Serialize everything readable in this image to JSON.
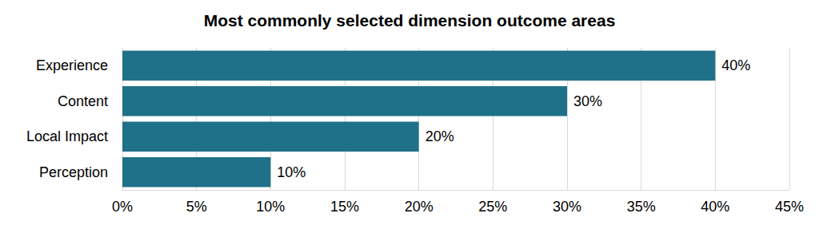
{
  "chart_data": {
    "type": "bar",
    "orientation": "horizontal",
    "title": "Most commonly selected dimension outcome areas",
    "categories": [
      "Experience",
      "Content",
      "Local Impact",
      "Perception"
    ],
    "values": [
      40,
      30,
      20,
      10
    ],
    "value_labels": [
      "40%",
      "30%",
      "20%",
      "10%"
    ],
    "color": "#1f7189",
    "xlim": [
      0,
      45
    ],
    "xticks": [
      {
        "value": 0,
        "label": "0%"
      },
      {
        "value": 5,
        "label": "5%"
      },
      {
        "value": 10,
        "label": "10%"
      },
      {
        "value": 15,
        "label": "15%"
      },
      {
        "value": 20,
        "label": "20%"
      },
      {
        "value": 25,
        "label": "25%"
      },
      {
        "value": 30,
        "label": "30%"
      },
      {
        "value": 35,
        "label": "35%"
      },
      {
        "value": 40,
        "label": "40%"
      },
      {
        "value": 45,
        "label": "45%"
      }
    ],
    "grid": true,
    "data_labels": true
  }
}
